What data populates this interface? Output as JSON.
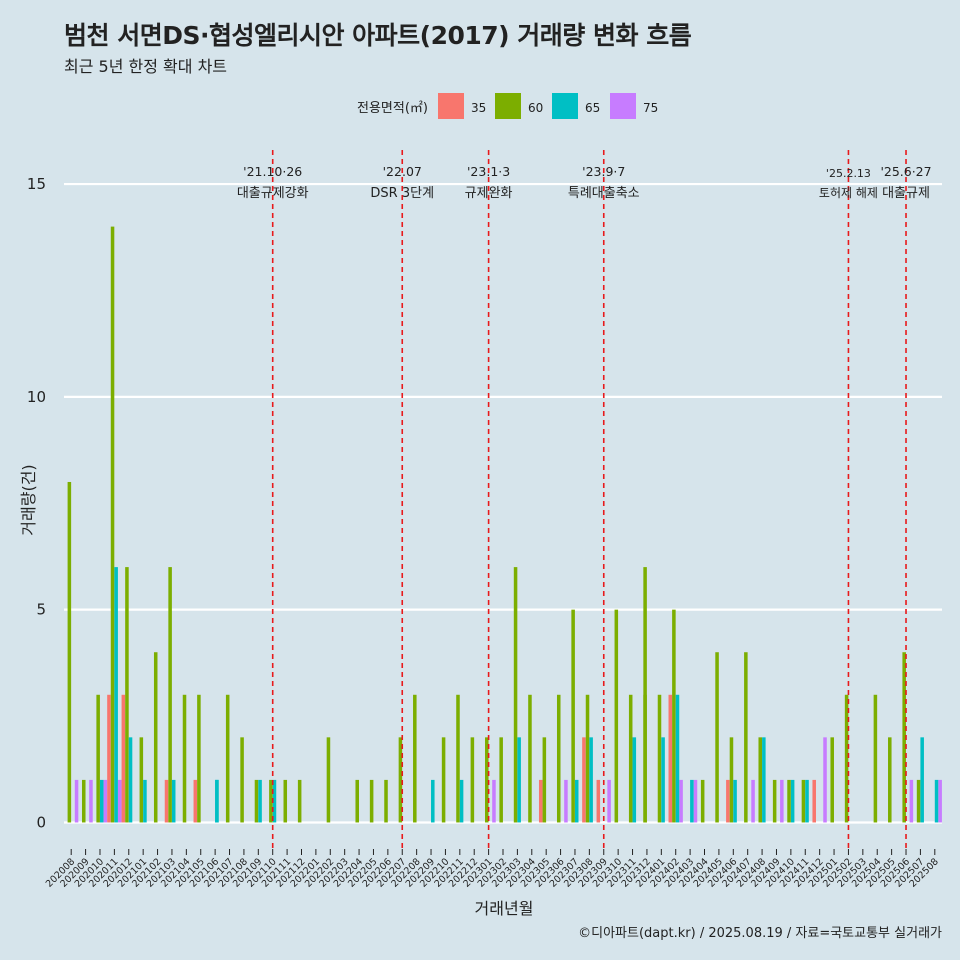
{
  "title": "범천 서면DS·협성엘리시안 아파트(2017) 거래량 변화 흐름",
  "subtitle": "최근 5년 한정 확대 차트",
  "caption": "©디아파트(dapt.kr) / 2025.08.19 / 자료=국토교통부 실거래가",
  "colors": {
    "background": "#d6e4eb",
    "grid": "#ffffff",
    "event_line": "#e8191b",
    "35": "#f8766d",
    "60": "#7cae00",
    "65": "#00bfc4",
    "75": "#c77cff"
  },
  "chart_data": {
    "type": "bar",
    "title": "범천 서면DS·협성엘리시안 아파트(2017) 거래량 변화 흐름",
    "subtitle": "최근 5년 한정 확대 차트",
    "xlabel": "거래년월",
    "ylabel": "거래량(건)",
    "ylim": [
      -0.6,
      15.8
    ],
    "yticks": [
      0,
      5,
      10,
      15
    ],
    "grid": true,
    "legend": {
      "title": "전용면적(㎡)",
      "position": "top",
      "items": [
        "35",
        "60",
        "65",
        "75"
      ]
    },
    "x_tick_labels": [
      "202008",
      "202009",
      "202010",
      "202011",
      "202012",
      "202101",
      "202102",
      "202103",
      "202104",
      "202105",
      "202106",
      "202107",
      "202108",
      "202109",
      "202110",
      "202111",
      "202112",
      "202201",
      "202202",
      "202203",
      "202204",
      "202205",
      "202206",
      "202207",
      "202208",
      "202209",
      "202210",
      "202211",
      "202212",
      "202301",
      "202302",
      "202303",
      "202304",
      "202305",
      "202306",
      "202307",
      "202308",
      "202309",
      "202310",
      "202311",
      "202312",
      "202401",
      "202402",
      "202403",
      "202404",
      "202405",
      "202406",
      "202407",
      "202408",
      "202409",
      "202410",
      "202411",
      "202412",
      "202501",
      "202502",
      "202503",
      "202504",
      "202505",
      "202506",
      "202507",
      "202508"
    ],
    "bars": [
      {
        "month": "202008",
        "area": "60",
        "value": 8
      },
      {
        "month": "202008",
        "area": "75",
        "value": 1
      },
      {
        "month": "202009",
        "area": "60",
        "value": 1
      },
      {
        "month": "202009",
        "area": "75",
        "value": 1
      },
      {
        "month": "202010",
        "area": "75",
        "value": 1
      },
      {
        "month": "202010",
        "area": "60",
        "value": 3
      },
      {
        "month": "202010",
        "area": "65",
        "value": 1
      },
      {
        "month": "202011",
        "area": "35",
        "value": 3
      },
      {
        "month": "202011",
        "area": "60",
        "value": 14
      },
      {
        "month": "202011",
        "area": "65",
        "value": 6
      },
      {
        "month": "202011",
        "area": "75",
        "value": 1
      },
      {
        "month": "202012",
        "area": "35",
        "value": 3
      },
      {
        "month": "202012",
        "area": "60",
        "value": 6
      },
      {
        "month": "202012",
        "area": "65",
        "value": 2
      },
      {
        "month": "202101",
        "area": "60",
        "value": 2
      },
      {
        "month": "202101",
        "area": "65",
        "value": 1
      },
      {
        "month": "202102",
        "area": "60",
        "value": 4
      },
      {
        "month": "202103",
        "area": "35",
        "value": 1
      },
      {
        "month": "202103",
        "area": "60",
        "value": 6
      },
      {
        "month": "202103",
        "area": "65",
        "value": 1
      },
      {
        "month": "202104",
        "area": "60",
        "value": 3
      },
      {
        "month": "202105",
        "area": "35",
        "value": 1
      },
      {
        "month": "202105",
        "area": "60",
        "value": 3
      },
      {
        "month": "202106",
        "area": "65",
        "value": 1
      },
      {
        "month": "202106",
        "area": "65",
        "value": 1
      },
      {
        "month": "202107",
        "area": "60",
        "value": 3
      },
      {
        "month": "202108",
        "area": "60",
        "value": 2
      },
      {
        "month": "202109",
        "area": "60",
        "value": 1
      },
      {
        "month": "202109",
        "area": "65",
        "value": 1
      },
      {
        "month": "202110",
        "area": "65",
        "value": 1
      },
      {
        "month": "202110",
        "area": "60",
        "value": 1
      },
      {
        "month": "202111",
        "area": "60",
        "value": 1
      },
      {
        "month": "202112",
        "area": "60",
        "value": 1
      },
      {
        "month": "202202",
        "area": "60",
        "value": 2
      },
      {
        "month": "202204",
        "area": "60",
        "value": 1
      },
      {
        "month": "202205",
        "area": "60",
        "value": 1
      },
      {
        "month": "202206",
        "area": "60",
        "value": 1
      },
      {
        "month": "202207",
        "area": "60",
        "value": 2
      },
      {
        "month": "202208",
        "area": "60",
        "value": 3
      },
      {
        "month": "202209",
        "area": "65",
        "value": 1
      },
      {
        "month": "202210",
        "area": "60",
        "value": 2
      },
      {
        "month": "202211",
        "area": "60",
        "value": 3
      },
      {
        "month": "202211",
        "area": "65",
        "value": 1
      },
      {
        "month": "202212",
        "area": "60",
        "value": 2
      },
      {
        "month": "202301",
        "area": "60",
        "value": 2
      },
      {
        "month": "202301",
        "area": "75",
        "value": 1
      },
      {
        "month": "202302",
        "area": "60",
        "value": 2
      },
      {
        "month": "202303",
        "area": "60",
        "value": 6
      },
      {
        "month": "202303",
        "area": "65",
        "value": 2
      },
      {
        "month": "202304",
        "area": "60",
        "value": 3
      },
      {
        "month": "202305",
        "area": "35",
        "value": 1
      },
      {
        "month": "202305",
        "area": "60",
        "value": 2
      },
      {
        "month": "202306",
        "area": "60",
        "value": 3
      },
      {
        "month": "202306",
        "area": "75",
        "value": 1
      },
      {
        "month": "202307",
        "area": "60",
        "value": 5
      },
      {
        "month": "202307",
        "area": "65",
        "value": 1
      },
      {
        "month": "202308",
        "area": "35",
        "value": 2
      },
      {
        "month": "202308",
        "area": "60",
        "value": 3
      },
      {
        "month": "202308",
        "area": "65",
        "value": 2
      },
      {
        "month": "202309",
        "area": "35",
        "value": 1
      },
      {
        "month": "202309",
        "area": "75",
        "value": 1
      },
      {
        "month": "202310",
        "area": "60",
        "value": 5
      },
      {
        "month": "202311",
        "area": "60",
        "value": 3
      },
      {
        "month": "202311",
        "area": "65",
        "value": 2
      },
      {
        "month": "202312",
        "area": "60",
        "value": 3
      },
      {
        "month": "202312",
        "area": "60",
        "value": 6
      },
      {
        "month": "202401",
        "area": "60",
        "value": 3
      },
      {
        "month": "202401",
        "area": "65",
        "value": 2
      },
      {
        "month": "202402",
        "area": "75",
        "value": 1
      },
      {
        "month": "202402",
        "area": "35",
        "value": 3
      },
      {
        "month": "202402",
        "area": "60",
        "value": 5
      },
      {
        "month": "202402",
        "area": "65",
        "value": 3
      },
      {
        "month": "202403",
        "area": "75",
        "value": 1
      },
      {
        "month": "202403",
        "area": "65",
        "value": 1
      },
      {
        "month": "202404",
        "area": "60",
        "value": 1
      },
      {
        "month": "202405",
        "area": "60",
        "value": 4
      },
      {
        "month": "202406",
        "area": "35",
        "value": 1
      },
      {
        "month": "202406",
        "area": "60",
        "value": 2
      },
      {
        "month": "202406",
        "area": "65",
        "value": 1
      },
      {
        "month": "202407",
        "area": "60",
        "value": 4
      },
      {
        "month": "202407",
        "area": "75",
        "value": 1
      },
      {
        "month": "202408",
        "area": "60",
        "value": 2
      },
      {
        "month": "202408",
        "area": "65",
        "value": 2
      },
      {
        "month": "202409",
        "area": "60",
        "value": 1
      },
      {
        "month": "202409",
        "area": "75",
        "value": 1
      },
      {
        "month": "202410",
        "area": "65",
        "value": 1
      },
      {
        "month": "202410",
        "area": "60",
        "value": 1
      },
      {
        "month": "202411",
        "area": "60",
        "value": 1
      },
      {
        "month": "202411",
        "area": "65",
        "value": 1
      },
      {
        "month": "202412",
        "area": "75",
        "value": 2
      },
      {
        "month": "202412",
        "area": "35",
        "value": 1
      },
      {
        "month": "202501",
        "area": "60",
        "value": 2
      },
      {
        "month": "202502",
        "area": "60",
        "value": 3
      },
      {
        "month": "202504",
        "area": "60",
        "value": 3
      },
      {
        "month": "202505",
        "area": "60",
        "value": 2
      },
      {
        "month": "202506",
        "area": "60",
        "value": 4
      },
      {
        "month": "202506",
        "area": "75",
        "value": 1
      },
      {
        "month": "202507",
        "area": "60",
        "value": 1
      },
      {
        "month": "202507",
        "area": "65",
        "value": 2
      },
      {
        "month": "202508",
        "area": "65",
        "value": 1
      },
      {
        "month": "202508",
        "area": "75",
        "value": 1
      }
    ],
    "events": [
      {
        "line1": "'21.10·26",
        "line2": "대출규제강화",
        "month": "202110"
      },
      {
        "line1": "'22.07",
        "line2": "DSR 3단계",
        "month": "202207"
      },
      {
        "line1": "'23.1·3",
        "line2": "규제완화",
        "month": "202301"
      },
      {
        "line1": "'23.9·7",
        "line2": "특례대출축소",
        "month": "202309"
      },
      {
        "line1": "'25.2.13",
        "line2": "토허제 해제",
        "month": "202502"
      },
      {
        "line1": "'25.6·27",
        "line2": "대출규제",
        "month": "202506"
      }
    ]
  }
}
